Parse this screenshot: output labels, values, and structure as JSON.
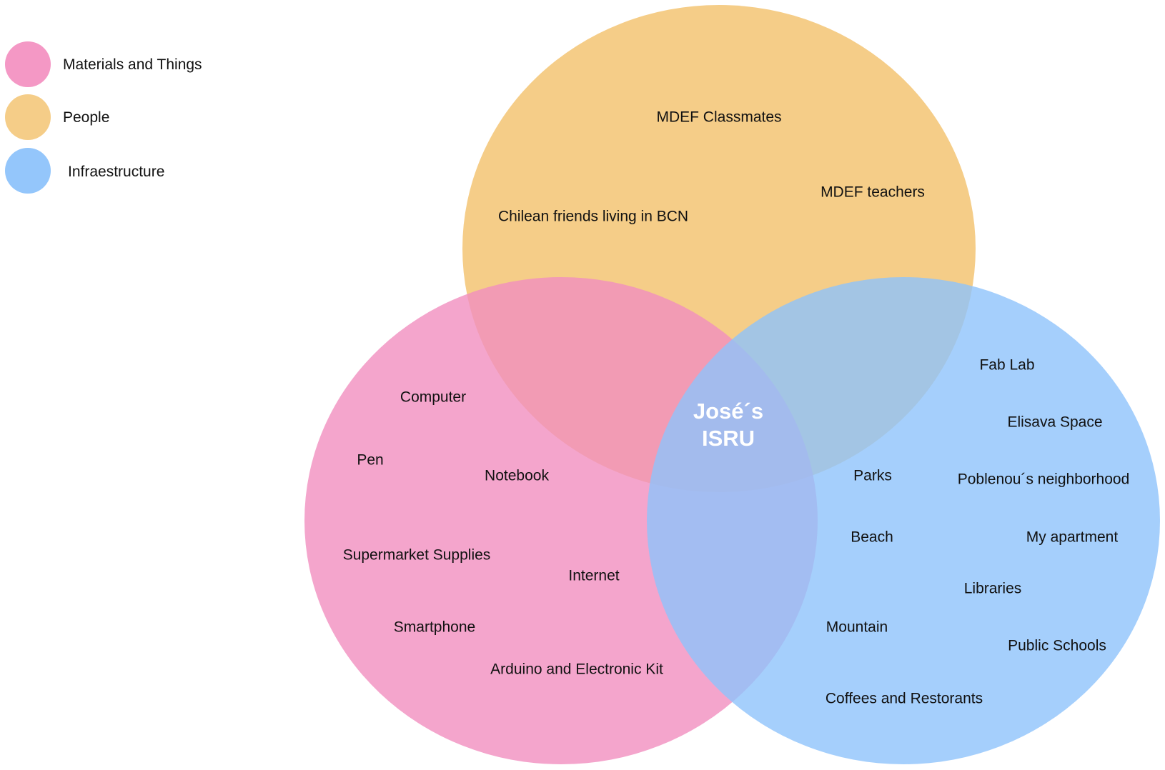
{
  "colors": {
    "materials": "#f18fbf",
    "people": "#f5cd88",
    "infrastructure": "#8fc3fb",
    "center_text": "#ffffff"
  },
  "legend": [
    {
      "key": "materials",
      "label": "Materials and Things"
    },
    {
      "key": "people",
      "label": "People"
    },
    {
      "key": "infrastructure",
      "label": "Infraestructure"
    }
  ],
  "center": {
    "line1": "José´s",
    "line2": "ISRU"
  },
  "people_items": [
    "MDEF Classmates",
    "MDEF teachers",
    "Chilean friends living in BCN"
  ],
  "materials_items": [
    "Computer",
    "Pen",
    "Notebook",
    "Supermarket Supplies",
    "Internet",
    "Smartphone",
    "Arduino and Electronic Kit"
  ],
  "infrastructure_items": [
    "Fab Lab",
    "Elisava Space",
    "Parks",
    "Poblenou´s neighborhood",
    "Beach",
    "My apartment",
    "Libraries",
    "Mountain",
    "Public Schools",
    "Coffees and Restorants"
  ]
}
